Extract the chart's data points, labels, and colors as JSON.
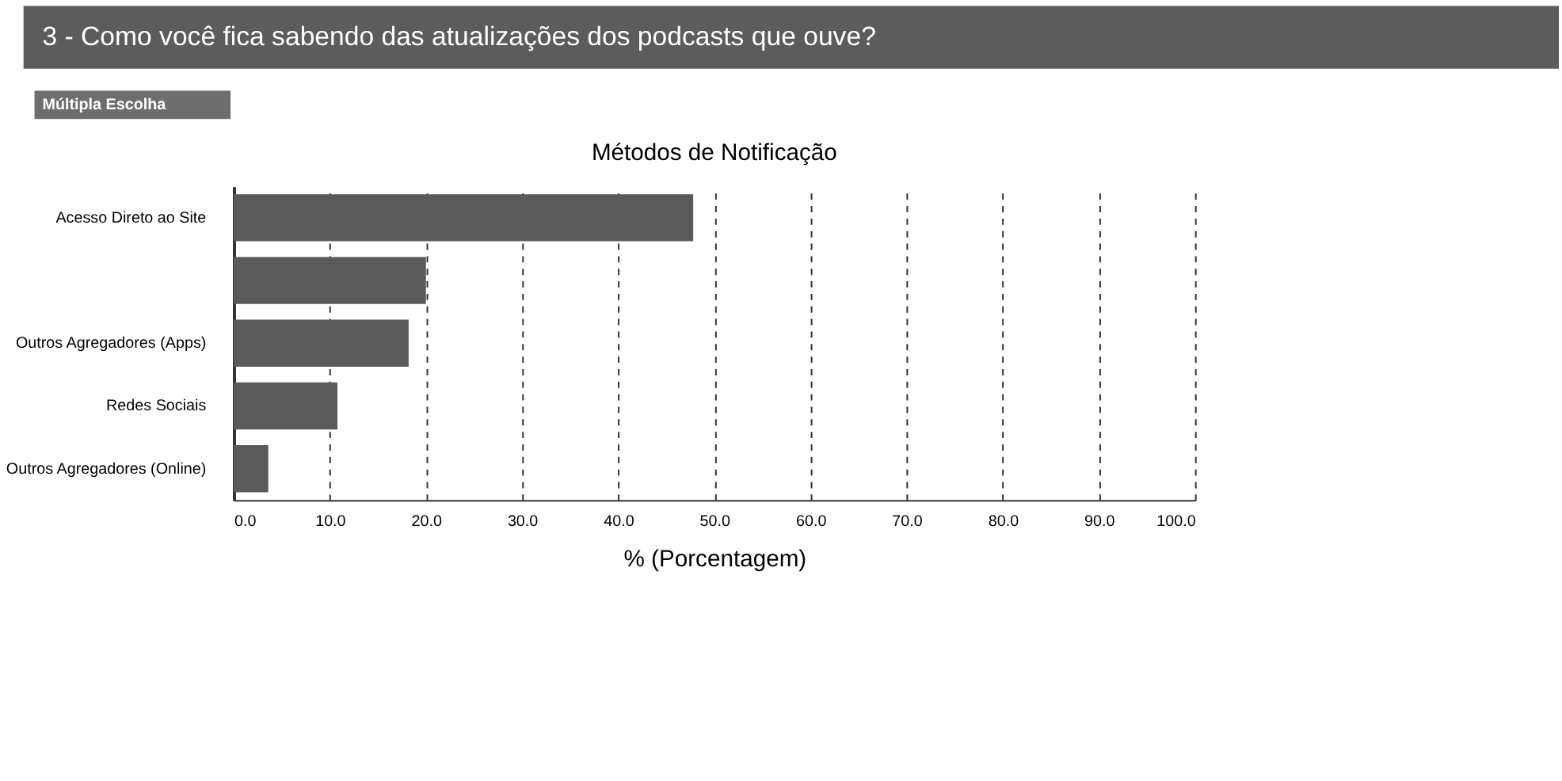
{
  "chart_data": {
    "type": "bar",
    "orientation": "horizontal",
    "title": "3 - Como você fica sabendo das atualizações dos podcasts que ouve?",
    "subtitle": "Métodos de Notificação",
    "annotations": [
      "Múltipla Escolha"
    ],
    "xlabel": "% (Porcentagem)",
    "categories": [
      "Acesso Direto ao Site",
      null,
      "Outros Agregadores (Apps)",
      "Redes Sociais",
      "Outros Agregadores (Online)"
    ],
    "values": [
      47.8,
      20.0,
      18.2,
      10.8,
      3.6
    ],
    "color": "#5a5a5a",
    "xlim": [
      0,
      100
    ],
    "xticks": [
      {
        "value": 0,
        "label": "0.0"
      },
      {
        "value": 10,
        "label": "10.0"
      },
      {
        "value": 20,
        "label": "20.0"
      },
      {
        "value": 30,
        "label": "30.0"
      },
      {
        "value": 40,
        "label": "40.0"
      },
      {
        "value": 50,
        "label": "50.0"
      },
      {
        "value": 60,
        "label": "60.0"
      },
      {
        "value": 70,
        "label": "70.0"
      },
      {
        "value": 80,
        "label": "80.0"
      },
      {
        "value": 90,
        "label": "90.0"
      },
      {
        "value": 100,
        "label": "100.0"
      }
    ],
    "grid": "x"
  }
}
